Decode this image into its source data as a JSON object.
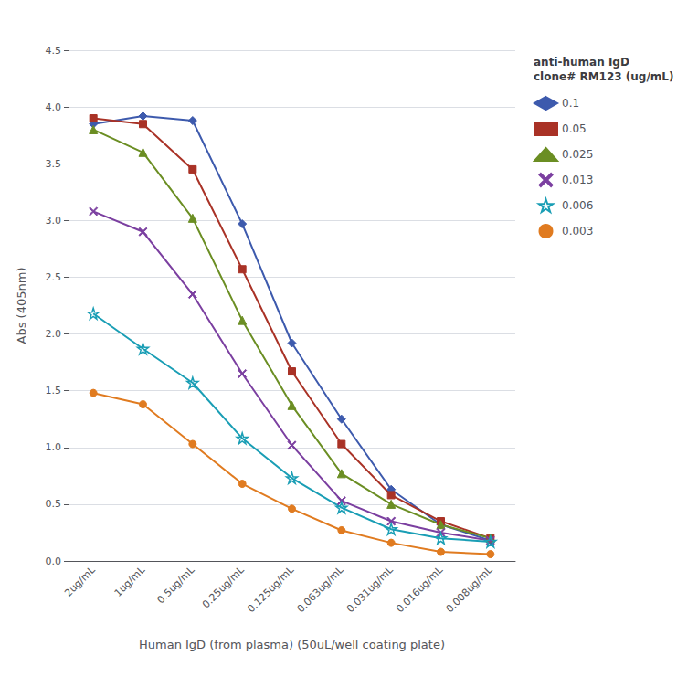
{
  "chart_data": {
    "type": "line",
    "categories": [
      "2ug/mL",
      "1ug/mL",
      "0.5ug/mL",
      "0.25ug/mL",
      "0.125ug/mL",
      "0.063ug/mL",
      "0.031ug/mL",
      "0.016ug/mL",
      "0.008ug/mL"
    ],
    "series": [
      {
        "name": "0.1",
        "color": "#3d5aad",
        "marker": "diamond",
        "values": [
          3.85,
          3.92,
          3.88,
          2.97,
          1.92,
          1.25,
          0.63,
          0.32,
          0.18
        ]
      },
      {
        "name": "0.05",
        "color": "#a93226",
        "marker": "square",
        "values": [
          3.9,
          3.85,
          3.45,
          2.57,
          1.67,
          1.03,
          0.58,
          0.35,
          0.2
        ]
      },
      {
        "name": "0.025",
        "color": "#6b8e23",
        "marker": "triangle",
        "values": [
          3.8,
          3.6,
          3.02,
          2.12,
          1.37,
          0.77,
          0.5,
          0.32,
          0.2
        ]
      },
      {
        "name": "0.013",
        "color": "#7b3fa0",
        "marker": "x",
        "values": [
          3.08,
          2.9,
          2.35,
          1.65,
          1.02,
          0.53,
          0.35,
          0.25,
          0.18
        ]
      },
      {
        "name": "0.006",
        "color": "#1a9eb5",
        "marker": "star",
        "values": [
          2.18,
          1.87,
          1.57,
          1.08,
          0.73,
          0.47,
          0.28,
          0.2,
          0.17
        ]
      },
      {
        "name": "0.003",
        "color": "#e07b20",
        "marker": "circle",
        "values": [
          1.48,
          1.38,
          1.03,
          0.68,
          0.46,
          0.27,
          0.16,
          0.08,
          0.06
        ]
      }
    ],
    "xlabel": "Human IgD (from plasma) (50uL/well coating plate)",
    "ylabel": "Abs (405nm)",
    "legend_title": "anti-human IgD\nclone# RM123 (ug/mL)",
    "ylim": [
      0,
      4.5
    ],
    "yticks": [
      {
        "value": 0,
        "label": "0.0"
      },
      0.5,
      {
        "value": 1.0,
        "label": "1.0"
      },
      1.5,
      {
        "value": 2.0,
        "label": "2.0"
      },
      2.5,
      {
        "value": 3.0,
        "label": "3.0"
      },
      3.5,
      {
        "value": 4.0,
        "label": "4.0"
      },
      4.5
    ],
    "grid": true,
    "legend": "right"
  }
}
